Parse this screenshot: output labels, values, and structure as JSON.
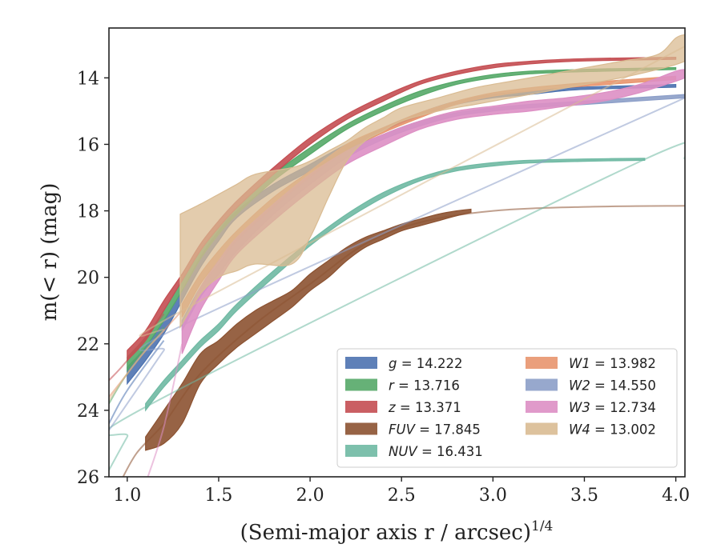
{
  "chart_data": {
    "type": "line",
    "xlabel": "(Semi-major axis r / arcsec)",
    "xlabel_sup": "1/4",
    "ylabel": "m(< r) (mag)",
    "xlim": [
      0.9,
      4.05
    ],
    "ylim": [
      26,
      12.5
    ],
    "y_inverted": true,
    "xticks": [
      1.0,
      1.5,
      2.0,
      2.5,
      3.0,
      3.5,
      4.0
    ],
    "xtick_labels": [
      "1.0",
      "1.5",
      "2.0",
      "2.5",
      "3.0",
      "3.5",
      "4.0"
    ],
    "yticks": [
      14,
      16,
      18,
      20,
      22,
      24,
      26
    ],
    "ytick_labels": [
      "14",
      "16",
      "18",
      "20",
      "22",
      "24",
      "26"
    ],
    "grid": false,
    "legend_position": "lower-right",
    "series": [
      {
        "name": "g",
        "value": "14.222",
        "color": "#4c72b0",
        "band": [
          [
            1.0,
            22.7,
            23.2
          ],
          [
            1.1,
            22.1,
            22.5
          ],
          [
            1.2,
            21.3,
            21.7
          ],
          [
            1.3,
            20.4,
            20.7
          ],
          [
            1.4,
            19.4,
            19.7
          ],
          [
            1.5,
            18.6,
            18.9
          ],
          [
            1.6,
            18.0,
            18.2
          ],
          [
            1.8,
            17.2,
            17.4
          ],
          [
            2.0,
            16.6,
            16.8
          ],
          [
            2.2,
            16.0,
            16.2
          ],
          [
            2.4,
            15.5,
            15.6
          ],
          [
            2.6,
            15.05,
            15.15
          ],
          [
            2.8,
            14.7,
            14.8
          ],
          [
            3.0,
            14.5,
            14.6
          ],
          [
            3.2,
            14.4,
            14.5
          ],
          [
            3.4,
            14.3,
            14.38
          ],
          [
            3.6,
            14.26,
            14.33
          ],
          [
            4.0,
            14.2,
            14.28
          ]
        ],
        "extrap": [
          [
            0.9,
            24.4
          ],
          [
            1.0,
            23.4
          ],
          [
            1.2,
            21.9
          ]
        ]
      },
      {
        "name": "r",
        "value": "13.716",
        "color": "#55a868",
        "band": [
          [
            1.0,
            22.4,
            22.8
          ],
          [
            1.1,
            21.8,
            22.1
          ],
          [
            1.2,
            21.0,
            21.3
          ],
          [
            1.3,
            20.1,
            20.4
          ],
          [
            1.4,
            19.2,
            19.45
          ],
          [
            1.5,
            18.5,
            18.7
          ],
          [
            1.6,
            17.9,
            18.1
          ],
          [
            1.8,
            16.9,
            17.1
          ],
          [
            2.0,
            16.1,
            16.3
          ],
          [
            2.2,
            15.4,
            15.55
          ],
          [
            2.4,
            14.85,
            15.0
          ],
          [
            2.6,
            14.4,
            14.55
          ],
          [
            2.8,
            14.1,
            14.2
          ],
          [
            3.0,
            13.9,
            14.0
          ],
          [
            3.2,
            13.8,
            13.88
          ],
          [
            3.4,
            13.76,
            13.83
          ],
          [
            3.6,
            13.73,
            13.8
          ],
          [
            4.0,
            13.69,
            13.75
          ]
        ],
        "extrap": [
          [
            0.9,
            23.8
          ],
          [
            1.0,
            22.9
          ],
          [
            1.2,
            21.5
          ]
        ]
      },
      {
        "name": "z",
        "value": "13.371",
        "color": "#c44e52",
        "band": [
          [
            1.0,
            22.2,
            22.5
          ],
          [
            1.1,
            21.6,
            21.9
          ],
          [
            1.2,
            20.7,
            21.0
          ],
          [
            1.3,
            19.9,
            20.1
          ],
          [
            1.4,
            19.0,
            19.2
          ],
          [
            1.5,
            18.3,
            18.5
          ],
          [
            1.6,
            17.7,
            17.9
          ],
          [
            1.8,
            16.7,
            16.9
          ],
          [
            2.0,
            15.8,
            16.0
          ],
          [
            2.2,
            15.1,
            15.25
          ],
          [
            2.4,
            14.55,
            14.7
          ],
          [
            2.6,
            14.1,
            14.2
          ],
          [
            2.8,
            13.8,
            13.9
          ],
          [
            3.0,
            13.6,
            13.7
          ],
          [
            3.2,
            13.5,
            13.58
          ],
          [
            3.4,
            13.44,
            13.51
          ],
          [
            3.6,
            13.41,
            13.48
          ],
          [
            4.0,
            13.38,
            13.44
          ]
        ],
        "extrap": [
          [
            0.9,
            23.1
          ],
          [
            1.0,
            22.5
          ],
          [
            1.2,
            21.1
          ]
        ]
      },
      {
        "name": "FUV",
        "value": "17.845",
        "color": "#8c5231",
        "band": [
          [
            1.1,
            24.8,
            25.2
          ],
          [
            1.2,
            24.0,
            25.0
          ],
          [
            1.3,
            23.2,
            24.4
          ],
          [
            1.4,
            22.3,
            23.2
          ],
          [
            1.5,
            21.9,
            22.6
          ],
          [
            1.6,
            21.4,
            22.1
          ],
          [
            1.7,
            21.0,
            21.7
          ],
          [
            1.8,
            20.7,
            21.3
          ],
          [
            1.9,
            20.4,
            20.9
          ],
          [
            2.0,
            19.9,
            20.4
          ],
          [
            2.1,
            19.5,
            20.0
          ],
          [
            2.2,
            19.1,
            19.5
          ],
          [
            2.3,
            18.8,
            19.1
          ],
          [
            2.4,
            18.6,
            18.85
          ],
          [
            2.5,
            18.4,
            18.6
          ],
          [
            2.6,
            18.25,
            18.45
          ],
          [
            2.7,
            18.1,
            18.3
          ],
          [
            2.8,
            18.0,
            18.15
          ],
          [
            2.88,
            17.95,
            18.05
          ]
        ],
        "extrap": [
          [
            0.95,
            26.3
          ],
          [
            1.05,
            25.3
          ],
          [
            1.2,
            24.4
          ],
          [
            1.4,
            22.9
          ],
          [
            1.7,
            21.4
          ],
          [
            2.0,
            20.2
          ],
          [
            2.3,
            19.0
          ],
          [
            2.6,
            18.35
          ],
          [
            3.0,
            18.0
          ],
          [
            3.5,
            17.88
          ],
          [
            4.05,
            17.85
          ]
        ]
      },
      {
        "name": "NUV",
        "value": "16.431",
        "color": "#6fb9a3",
        "band": [
          [
            1.1,
            23.8,
            24.0
          ],
          [
            1.2,
            23.1,
            23.3
          ],
          [
            1.3,
            22.5,
            22.7
          ],
          [
            1.4,
            21.9,
            22.1
          ],
          [
            1.5,
            21.4,
            21.6
          ],
          [
            1.6,
            20.8,
            21.0
          ],
          [
            1.8,
            19.8,
            20.0
          ],
          [
            2.0,
            18.9,
            19.05
          ],
          [
            2.2,
            18.1,
            18.25
          ],
          [
            2.4,
            17.45,
            17.6
          ],
          [
            2.6,
            17.0,
            17.1
          ],
          [
            2.8,
            16.7,
            16.8
          ],
          [
            3.0,
            16.55,
            16.65
          ],
          [
            3.2,
            16.48,
            16.56
          ],
          [
            3.5,
            16.44,
            16.51
          ],
          [
            3.83,
            16.42,
            16.48
          ]
        ],
        "extrap": [
          [
            0.9,
            25.8
          ],
          [
            1.0,
            24.8
          ],
          [
            1.1,
            23.9
          ],
          [
            3.83,
            16.45
          ],
          [
            4.05,
            16.43
          ]
        ]
      },
      {
        "name": "W1",
        "value": "13.982",
        "color": "#e8956e",
        "band": [
          [
            1.3,
            20.8,
            21.2
          ],
          [
            1.4,
            19.9,
            20.2
          ],
          [
            1.5,
            19.2,
            19.5
          ],
          [
            1.6,
            18.6,
            18.9
          ],
          [
            1.8,
            17.6,
            17.9
          ],
          [
            2.0,
            16.8,
            17.0
          ],
          [
            2.2,
            16.0,
            16.2
          ],
          [
            2.4,
            15.5,
            15.65
          ],
          [
            2.6,
            15.05,
            15.2
          ],
          [
            2.8,
            14.7,
            14.8
          ],
          [
            3.0,
            14.45,
            14.55
          ],
          [
            3.2,
            14.3,
            14.4
          ],
          [
            3.5,
            14.15,
            14.25
          ],
          [
            4.0,
            13.95,
            14.05
          ]
        ],
        "extrap": [
          [
            0.9,
            23.6
          ],
          [
            1.0,
            22.9
          ],
          [
            1.1,
            22.2
          ],
          [
            1.2,
            21.6
          ],
          [
            1.3,
            21.0
          ]
        ]
      },
      {
        "name": "W2",
        "value": "14.550",
        "color": "#8c9ec8",
        "band": [
          [
            1.3,
            21.3,
            21.6
          ],
          [
            1.4,
            20.3,
            20.6
          ],
          [
            1.5,
            19.6,
            19.9
          ],
          [
            1.6,
            18.9,
            19.2
          ],
          [
            1.8,
            17.9,
            18.1
          ],
          [
            2.0,
            17.0,
            17.2
          ],
          [
            2.2,
            16.2,
            16.4
          ],
          [
            2.4,
            15.7,
            15.85
          ],
          [
            2.6,
            15.3,
            15.45
          ],
          [
            2.8,
            15.05,
            15.15
          ],
          [
            3.0,
            14.9,
            15.0
          ],
          [
            3.2,
            14.8,
            14.9
          ],
          [
            3.5,
            14.7,
            14.8
          ],
          [
            4.05,
            14.5,
            14.6
          ]
        ],
        "extrap": [
          [
            0.9,
            24.6
          ],
          [
            1.0,
            23.8
          ],
          [
            1.1,
            23.0
          ],
          [
            1.2,
            22.2
          ],
          [
            1.3,
            21.45
          ],
          [
            4.05,
            14.6
          ]
        ]
      },
      {
        "name": "W3",
        "value": "12.734",
        "color": "#dd8fc4",
        "band": [
          [
            1.3,
            21.5,
            22.3
          ],
          [
            1.4,
            20.3,
            21.0
          ],
          [
            1.5,
            19.5,
            20.1
          ],
          [
            1.6,
            18.8,
            19.3
          ],
          [
            1.8,
            17.8,
            18.3
          ],
          [
            2.0,
            16.9,
            17.4
          ],
          [
            2.2,
            16.2,
            16.6
          ],
          [
            2.4,
            15.7,
            16.05
          ],
          [
            2.6,
            15.3,
            15.55
          ],
          [
            2.8,
            15.0,
            15.25
          ],
          [
            3.0,
            14.85,
            15.1
          ],
          [
            3.2,
            14.7,
            15.0
          ],
          [
            3.4,
            14.6,
            14.85
          ],
          [
            3.6,
            14.45,
            14.7
          ],
          [
            3.8,
            14.2,
            14.45
          ],
          [
            4.0,
            13.8,
            14.1
          ],
          [
            4.05,
            13.75,
            14.0
          ]
        ],
        "extrap": [
          [
            1.1,
            26.2
          ],
          [
            1.2,
            24.5
          ],
          [
            1.3,
            22.0
          ]
        ]
      },
      {
        "name": "W4",
        "value": "13.002",
        "color": "#d9bb92",
        "band": [
          [
            1.29,
            18.1,
            21.5
          ],
          [
            1.4,
            17.8,
            20.5
          ],
          [
            1.5,
            17.5,
            20.0
          ],
          [
            1.6,
            17.2,
            19.8
          ],
          [
            1.7,
            16.9,
            19.6
          ],
          [
            1.9,
            16.7,
            19.6
          ],
          [
            2.0,
            16.5,
            18.8
          ],
          [
            2.1,
            16.2,
            17.6
          ],
          [
            2.2,
            15.9,
            16.5
          ],
          [
            2.3,
            15.5,
            15.9
          ],
          [
            2.4,
            15.2,
            15.6
          ],
          [
            2.5,
            14.9,
            15.3
          ],
          [
            2.7,
            14.6,
            15.0
          ],
          [
            2.9,
            14.3,
            14.8
          ],
          [
            3.1,
            14.1,
            14.6
          ],
          [
            3.3,
            13.9,
            14.4
          ],
          [
            3.5,
            13.7,
            14.2
          ],
          [
            3.7,
            13.5,
            14.0
          ],
          [
            3.9,
            13.3,
            13.75
          ],
          [
            4.0,
            12.8,
            13.6
          ],
          [
            4.05,
            12.7,
            13.5
          ]
        ],
        "extrap": [
          [
            0.9,
            23.7
          ],
          [
            1.0,
            22.9
          ],
          [
            1.1,
            22.2
          ],
          [
            1.2,
            21.6
          ],
          [
            1.3,
            21.0
          ],
          [
            4.05,
            13.05
          ]
        ]
      }
    ]
  }
}
